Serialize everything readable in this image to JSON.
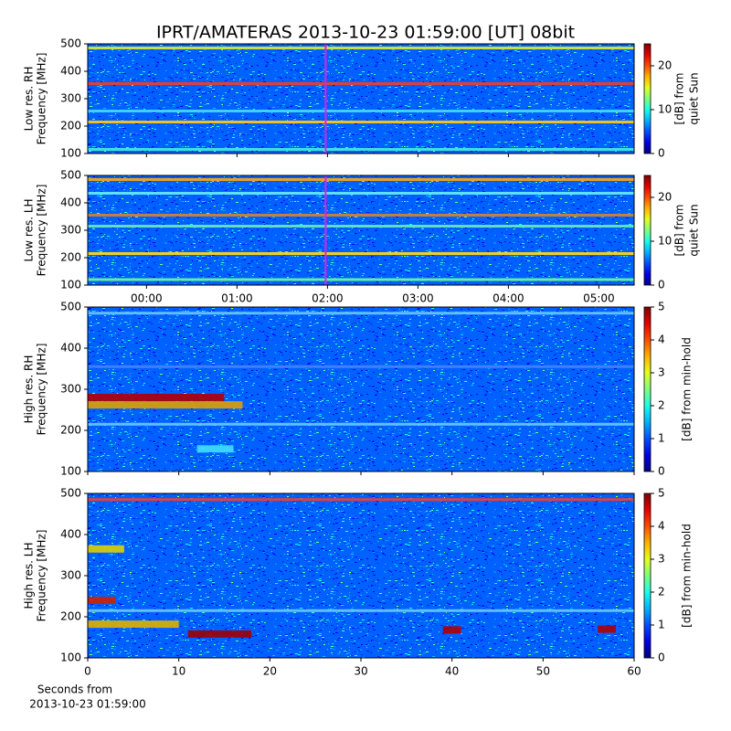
{
  "chart_data": [
    {
      "type": "heatmap",
      "title": "IPRT/AMATERAS 2013-10-23 01:59:00 [UT]   08bit",
      "ylabel": [
        "Low res. RH",
        "Frequency [MHz]"
      ],
      "xlim": [
        -0.65,
        5.39
      ],
      "sharex": 1,
      "cursor_x": 1.98,
      "cursor_color": "#e020e0",
      "ylim": [
        100,
        500
      ],
      "yticks": [
        100,
        200,
        300,
        400,
        500
      ],
      "clim": [
        0,
        25
      ],
      "cticks": [
        0,
        10,
        20
      ],
      "clabel": [
        "[dB] from",
        "quiet Sun"
      ],
      "bands": [
        {
          "freq": 485,
          "color": "#c8e040"
        },
        {
          "freq": 355,
          "color": "#e04030"
        },
        {
          "freq": 255,
          "color": "#40d0ff"
        },
        {
          "freq": 215,
          "color": "#f0c020"
        },
        {
          "freq": 115,
          "color": "#40e0e0"
        }
      ]
    },
    {
      "type": "heatmap",
      "ylabel": [
        "Low res. LH",
        "Frequency [MHz]"
      ],
      "xlim": [
        -0.65,
        5.39
      ],
      "cursor_x": 1.98,
      "cursor_color": "#e020e0",
      "xticks": [
        {
          "value": 0,
          "label": "00:00"
        },
        {
          "value": 1,
          "label": "01:00"
        },
        {
          "value": 2,
          "label": "02:00"
        },
        {
          "value": 3,
          "label": "03:00"
        },
        {
          "value": 4,
          "label": "04:00"
        },
        {
          "value": 5,
          "label": "05:00"
        }
      ],
      "ylim": [
        100,
        500
      ],
      "yticks": [
        100,
        200,
        300,
        400,
        500
      ],
      "clim": [
        0,
        25
      ],
      "cticks": [
        0,
        10,
        20
      ],
      "clabel": [
        "[dB] from",
        "quiet Sun"
      ],
      "bands": [
        {
          "freq": 485,
          "color": "#f0a020"
        },
        {
          "freq": 435,
          "color": "#60e0ff"
        },
        {
          "freq": 355,
          "color": "#c08040"
        },
        {
          "freq": 315,
          "color": "#60e0c0"
        },
        {
          "freq": 215,
          "color": "#f0d020"
        },
        {
          "freq": 120,
          "color": "#60f0a0"
        }
      ]
    },
    {
      "type": "heatmap",
      "ylabel": [
        "High res. RH",
        "Frequency [MHz]"
      ],
      "xlim": [
        0,
        60
      ],
      "sharex": 3,
      "ylim": [
        100,
        500
      ],
      "yticks": [
        100,
        200,
        300,
        400,
        500
      ],
      "clim": [
        0,
        5
      ],
      "cticks": [
        0,
        1,
        2,
        3,
        4,
        5
      ],
      "clabel": [
        "[dB] from min-hold"
      ],
      "bands": [
        {
          "freq": 485,
          "color": "#60c0ff"
        },
        {
          "freq": 355,
          "color": "#4080ff"
        },
        {
          "freq": 215,
          "color": "#60c0ff"
        }
      ],
      "bursts": [
        {
          "x": [
            0,
            15
          ],
          "freq": 280,
          "color": "#b00000"
        },
        {
          "x": [
            0,
            17
          ],
          "freq": 262,
          "color": "#e0a000"
        },
        {
          "x": [
            12,
            16
          ],
          "freq": 155,
          "color": "#40e0ff"
        }
      ]
    },
    {
      "type": "heatmap",
      "ylabel": [
        "High res. LH",
        "Frequency [MHz]"
      ],
      "xlim": [
        0,
        60
      ],
      "xticks": [
        0,
        10,
        20,
        30,
        40,
        50,
        60
      ],
      "xlabel": [
        "Seconds from",
        "2013-10-23 01:59:00"
      ],
      "ylim": [
        100,
        500
      ],
      "yticks": [
        100,
        200,
        300,
        400,
        500
      ],
      "clim": [
        0,
        5
      ],
      "cticks": [
        0,
        1,
        2,
        3,
        4,
        5
      ],
      "clabel": [
        "[dB] from min-hold"
      ],
      "bands": [
        {
          "freq": 485,
          "color": "#e04040"
        },
        {
          "freq": 215,
          "color": "#60c0ff"
        }
      ],
      "bursts": [
        {
          "x": [
            0,
            4
          ],
          "freq": 365,
          "color": "#e0d000"
        },
        {
          "x": [
            0,
            3
          ],
          "freq": 240,
          "color": "#d02000"
        },
        {
          "x": [
            0,
            10
          ],
          "freq": 182,
          "color": "#e0b000"
        },
        {
          "x": [
            11,
            18
          ],
          "freq": 158,
          "color": "#a00000"
        },
        {
          "x": [
            39,
            41
          ],
          "freq": 168,
          "color": "#b00000"
        },
        {
          "x": [
            56,
            58
          ],
          "freq": 170,
          "color": "#b00000"
        }
      ]
    }
  ]
}
